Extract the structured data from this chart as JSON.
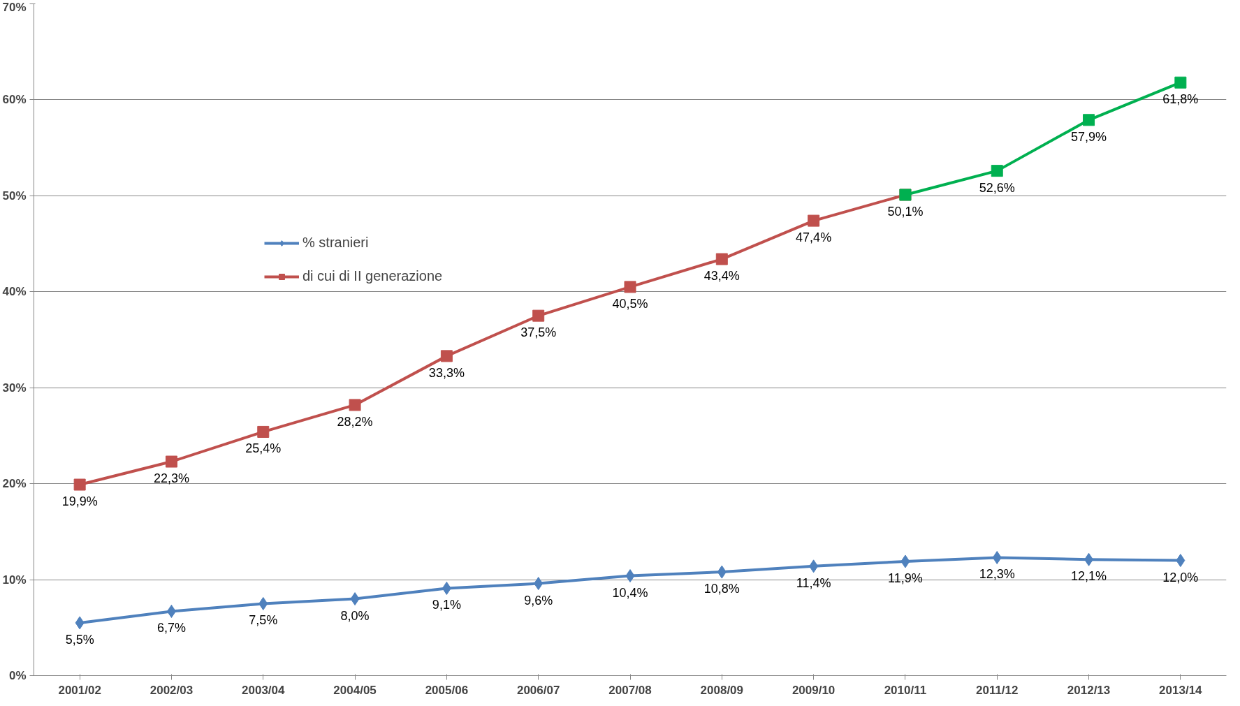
{
  "chart_data": {
    "type": "line",
    "categories": [
      "2001/02",
      "2002/03",
      "2003/04",
      "2004/05",
      "2005/06",
      "2006/07",
      "2007/08",
      "2008/09",
      "2009/10",
      "2010/11",
      "2011/12",
      "2012/13",
      "2013/14"
    ],
    "ylim": [
      0,
      70
    ],
    "yticks": [
      {
        "value": 0,
        "label": "0%"
      },
      {
        "value": 10,
        "label": "10%"
      },
      {
        "value": 20,
        "label": "20%"
      },
      {
        "value": 30,
        "label": "30%"
      },
      {
        "value": 40,
        "label": "40%"
      },
      {
        "value": 50,
        "label": "50%"
      },
      {
        "value": 60,
        "label": "60%"
      },
      {
        "value": 70,
        "label": "70%"
      }
    ],
    "grid": "y",
    "legend": "top left",
    "line_style": "solid",
    "series": [
      {
        "name": "% stranieri",
        "color": "#4f81bd",
        "marker": "diamond",
        "values": [
          5.5,
          6.7,
          7.5,
          8.0,
          9.1,
          9.6,
          10.4,
          10.8,
          11.4,
          11.9,
          12.3,
          12.1,
          12.0
        ],
        "value_labels": [
          "5,5%",
          "6,7%",
          "7,5%",
          "8,0%",
          "9,1%",
          "9,6%",
          "10,4%",
          "10,8%",
          "11,4%",
          "11,9%",
          "12,3%",
          "12,1%",
          "12,0%"
        ]
      },
      {
        "name": "di cui di II generazione",
        "color": "#c0504d",
        "marker": "square",
        "values": [
          19.9,
          22.3,
          25.4,
          28.2,
          33.3,
          37.5,
          40.5,
          43.4,
          47.4,
          50.1,
          null,
          null,
          null
        ],
        "value_labels": [
          "19,9%",
          "22,3%",
          "25,4%",
          "28,2%",
          "33,3%",
          "37,5%",
          "40,5%",
          "43,4%",
          "47,4%",
          "50,1%",
          null,
          null,
          null
        ]
      },
      {
        "color": "#00b050",
        "marker": "square",
        "values": [
          null,
          null,
          null,
          null,
          null,
          null,
          null,
          null,
          null,
          50.1,
          52.6,
          57.9,
          61.8
        ],
        "value_labels": [
          null,
          null,
          null,
          null,
          null,
          null,
          null,
          null,
          null,
          null,
          "52,6%",
          "57,9%",
          "61,8%"
        ]
      }
    ]
  }
}
